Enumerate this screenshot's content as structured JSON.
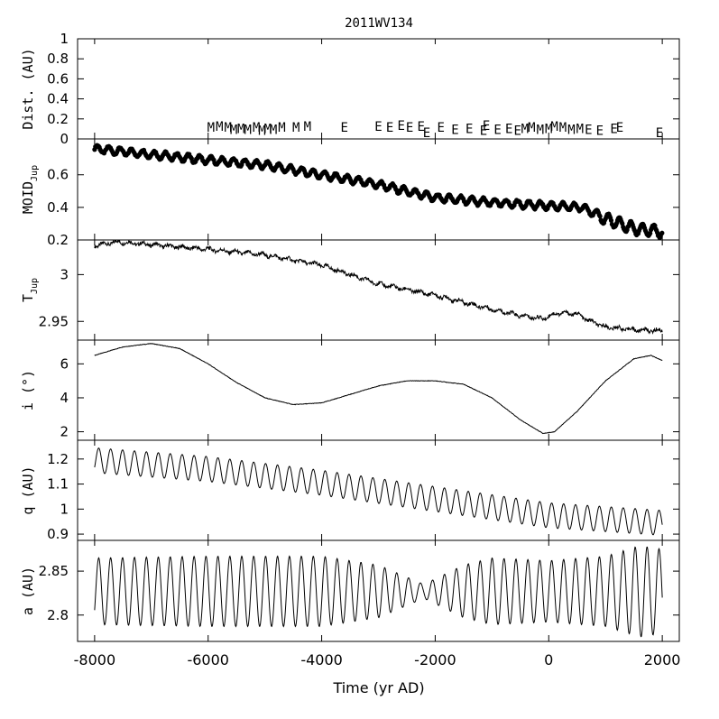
{
  "chart_data": {
    "type": "line",
    "title": "2011WV134",
    "xlabel": "Time (yr AD)",
    "xlim": [
      -8300,
      2300
    ],
    "xticks": [
      -8000,
      -6000,
      -4000,
      -2000,
      0,
      2000
    ],
    "xtick_labels": [
      "-8000",
      "-6000",
      "-4000",
      "-2000",
      "0",
      "2000"
    ],
    "panels": [
      {
        "key": "dist",
        "ylabel": "Dist. (AU)",
        "ylim": [
          0,
          1
        ],
        "yticks": [
          0,
          0.2,
          0.4,
          0.6,
          0.8,
          1
        ],
        "ytick_labels": [
          "0",
          "0.2",
          "0.4",
          "0.6",
          "0.8",
          "1"
        ],
        "encounters": [
          {
            "year": -5950,
            "dist": 0.07,
            "body": "M"
          },
          {
            "year": -5800,
            "dist": 0.08,
            "body": "M"
          },
          {
            "year": -5650,
            "dist": 0.07,
            "body": "M"
          },
          {
            "year": -5550,
            "dist": 0.05,
            "body": "M"
          },
          {
            "year": -5420,
            "dist": 0.06,
            "body": "M"
          },
          {
            "year": -5300,
            "dist": 0.05,
            "body": "M"
          },
          {
            "year": -5150,
            "dist": 0.07,
            "body": "M"
          },
          {
            "year": -5050,
            "dist": 0.04,
            "body": "M"
          },
          {
            "year": -4950,
            "dist": 0.06,
            "body": "M"
          },
          {
            "year": -4850,
            "dist": 0.05,
            "body": "M"
          },
          {
            "year": -4700,
            "dist": 0.07,
            "body": "M"
          },
          {
            "year": -4450,
            "dist": 0.07,
            "body": "M"
          },
          {
            "year": -4250,
            "dist": 0.08,
            "body": "M"
          },
          {
            "year": -3600,
            "dist": 0.07,
            "body": "E"
          },
          {
            "year": -3000,
            "dist": 0.08,
            "body": "E"
          },
          {
            "year": -2800,
            "dist": 0.07,
            "body": "E"
          },
          {
            "year": -2600,
            "dist": 0.09,
            "body": "E"
          },
          {
            "year": -2450,
            "dist": 0.07,
            "body": "E"
          },
          {
            "year": -2250,
            "dist": 0.08,
            "body": "E"
          },
          {
            "year": -2150,
            "dist": 0.02,
            "body": "E"
          },
          {
            "year": -1900,
            "dist": 0.07,
            "body": "E"
          },
          {
            "year": -1650,
            "dist": 0.05,
            "body": "E"
          },
          {
            "year": -1400,
            "dist": 0.06,
            "body": "E"
          },
          {
            "year": -1150,
            "dist": 0.04,
            "body": "E"
          },
          {
            "year": -1100,
            "dist": 0.09,
            "body": "E"
          },
          {
            "year": -900,
            "dist": 0.05,
            "body": "E"
          },
          {
            "year": -700,
            "dist": 0.06,
            "body": "E"
          },
          {
            "year": -550,
            "dist": 0.04,
            "body": "E"
          },
          {
            "year": -420,
            "dist": 0.06,
            "body": "M"
          },
          {
            "year": -300,
            "dist": 0.07,
            "body": "M"
          },
          {
            "year": -150,
            "dist": 0.05,
            "body": "M"
          },
          {
            "year": 0,
            "dist": 0.06,
            "body": "M"
          },
          {
            "year": 100,
            "dist": 0.08,
            "body": "M"
          },
          {
            "year": 250,
            "dist": 0.07,
            "body": "M"
          },
          {
            "year": 400,
            "dist": 0.05,
            "body": "M"
          },
          {
            "year": 550,
            "dist": 0.06,
            "body": "M"
          },
          {
            "year": 700,
            "dist": 0.05,
            "body": "E"
          },
          {
            "year": 900,
            "dist": 0.04,
            "body": "E"
          },
          {
            "year": 1150,
            "dist": 0.06,
            "body": "E"
          },
          {
            "year": 1250,
            "dist": 0.07,
            "body": "E"
          },
          {
            "year": 1950,
            "dist": 0.02,
            "body": "E"
          }
        ]
      },
      {
        "key": "moid",
        "ylabel": "MOID",
        "ylabel_sub": "Jup",
        "ylim": [
          0.2,
          0.82
        ],
        "yticks": [
          0.2,
          0.4,
          0.6
        ],
        "ytick_labels": [
          "0.2",
          "0.4",
          "0.6"
        ],
        "points": [
          [
            -8000,
            0.76
          ],
          [
            -6000,
            0.69
          ],
          [
            -5000,
            0.66
          ],
          [
            -4000,
            0.6
          ],
          [
            -3000,
            0.54
          ],
          [
            -2000,
            0.46
          ],
          [
            -1000,
            0.43
          ],
          [
            0,
            0.41
          ],
          [
            600,
            0.4
          ],
          [
            1000,
            0.33
          ],
          [
            1500,
            0.27
          ],
          [
            2000,
            0.25
          ]
        ],
        "oscillation": {
          "amplitude": 0.022,
          "period_yr": 200
        }
      },
      {
        "key": "tjup",
        "ylabel": "T",
        "ylabel_sub": "Jup",
        "ylim": [
          2.93,
          3.037
        ],
        "yticks": [
          2.95,
          3
        ],
        "ytick_labels": [
          "2.95",
          "3"
        ],
        "points": [
          [
            -8000,
            3.031
          ],
          [
            -7600,
            3.035
          ],
          [
            -7000,
            3.032
          ],
          [
            -6000,
            3.027
          ],
          [
            -5000,
            3.021
          ],
          [
            -4000,
            3.01
          ],
          [
            -3000,
            2.99
          ],
          [
            -2000,
            2.978
          ],
          [
            -1000,
            2.963
          ],
          [
            -500,
            2.956
          ],
          [
            -100,
            2.953
          ],
          [
            150,
            2.959
          ],
          [
            500,
            2.958
          ],
          [
            700,
            2.951
          ],
          [
            1000,
            2.944
          ],
          [
            1500,
            2.941
          ],
          [
            2000,
            2.94
          ]
        ]
      },
      {
        "key": "incl",
        "ylabel": "i (°)",
        "ylim": [
          1.5,
          7.4
        ],
        "yticks": [
          2,
          4,
          6
        ],
        "ytick_labels": [
          "2",
          "4",
          "6"
        ],
        "points": [
          [
            -8000,
            6.5
          ],
          [
            -7500,
            7.0
          ],
          [
            -7000,
            7.2
          ],
          [
            -6500,
            6.9
          ],
          [
            -6000,
            6.0
          ],
          [
            -5500,
            4.9
          ],
          [
            -5000,
            4.0
          ],
          [
            -4500,
            3.6
          ],
          [
            -4000,
            3.7
          ],
          [
            -3500,
            4.2
          ],
          [
            -3000,
            4.7
          ],
          [
            -2500,
            5.0
          ],
          [
            -2000,
            5.0
          ],
          [
            -1500,
            4.8
          ],
          [
            -1000,
            4.0
          ],
          [
            -500,
            2.7
          ],
          [
            -100,
            1.9
          ],
          [
            100,
            2.0
          ],
          [
            500,
            3.2
          ],
          [
            1000,
            5.0
          ],
          [
            1500,
            6.3
          ],
          [
            1800,
            6.5
          ],
          [
            2000,
            6.2
          ]
        ]
      },
      {
        "key": "q",
        "ylabel": "q (AU)",
        "ylim": [
          0.875,
          1.275
        ],
        "yticks": [
          0.9,
          1,
          1.1,
          1.2
        ],
        "ytick_labels": [
          "0.9",
          "1",
          "1.1",
          "1.2"
        ],
        "points": [
          [
            -8000,
            1.195
          ],
          [
            -6000,
            1.16
          ],
          [
            -4000,
            1.105
          ],
          [
            -2000,
            1.04
          ],
          [
            0,
            0.975
          ],
          [
            2000,
            0.945
          ]
        ],
        "oscillation": {
          "amplitude": 0.05,
          "period_yr": 210
        }
      },
      {
        "key": "a",
        "ylabel": "a (AU)",
        "ylim": [
          2.77,
          2.885
        ],
        "yticks": [
          2.8,
          2.85
        ],
        "ytick_labels": [
          "2.8",
          "2.85"
        ],
        "mean": 2.827,
        "amplitude_envelope": [
          [
            -8000,
            0.038
          ],
          [
            -6000,
            0.04
          ],
          [
            -4000,
            0.04
          ],
          [
            -3000,
            0.03
          ],
          [
            -2200,
            0.008
          ],
          [
            -1500,
            0.03
          ],
          [
            -1000,
            0.038
          ],
          [
            0,
            0.035
          ],
          [
            1000,
            0.04
          ],
          [
            1600,
            0.052
          ],
          [
            2000,
            0.048
          ]
        ],
        "oscillation": {
          "period_yr": 210
        }
      }
    ]
  }
}
